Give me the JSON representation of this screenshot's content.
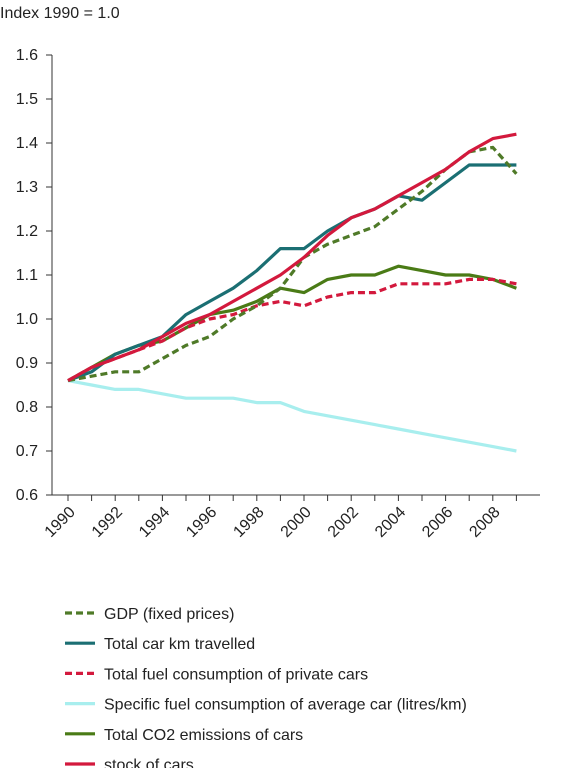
{
  "chart_data": {
    "type": "line",
    "ylabel": "Index 1990 = 1.0",
    "ylim": [
      0.6,
      1.6
    ],
    "y_ticks": [
      "0.6",
      "0.7",
      "0.8",
      "0.9",
      "1.0",
      "1.1",
      "1.2",
      "1.3",
      "1.4",
      "1.5",
      "1.6"
    ],
    "x_ticks": [
      "1990",
      "1992",
      "1994",
      "1996",
      "1998",
      "2000",
      "2002",
      "2004",
      "2006",
      "2008"
    ],
    "x": [
      1990,
      1991,
      1992,
      1993,
      1994,
      1995,
      1996,
      1997,
      1998,
      1999,
      2000,
      2001,
      2002,
      2003,
      2004,
      2005,
      2006,
      2007,
      2008,
      2009
    ],
    "grid": false,
    "legend_position": "bottom",
    "series": [
      {
        "name": "GDP (fixed prices)",
        "color": "#4f7a28",
        "dash": true,
        "values": [
          0.86,
          0.87,
          0.88,
          0.88,
          0.91,
          0.94,
          0.96,
          1.0,
          1.03,
          1.07,
          1.14,
          1.17,
          1.19,
          1.21,
          1.25,
          1.29,
          1.34,
          1.38,
          1.39,
          1.33
        ]
      },
      {
        "name": "Total car km travelled",
        "color": "#1b6f73",
        "dash": false,
        "values": [
          0.86,
          0.88,
          0.92,
          0.94,
          0.96,
          1.01,
          1.04,
          1.07,
          1.11,
          1.16,
          1.16,
          1.2,
          1.23,
          1.25,
          1.28,
          1.27,
          1.31,
          1.35,
          1.35,
          1.35
        ]
      },
      {
        "name": "Total fuel consumption of private cars",
        "color": "#d3193d",
        "dash": true,
        "values": [
          0.86,
          0.89,
          0.91,
          0.93,
          0.95,
          0.98,
          1.0,
          1.01,
          1.03,
          1.04,
          1.03,
          1.05,
          1.06,
          1.06,
          1.08,
          1.08,
          1.08,
          1.09,
          1.09,
          1.08
        ]
      },
      {
        "name": "Specific fuel consumption of average car (litres/km)",
        "color": "#a8eeee",
        "dash": false,
        "values": [
          0.86,
          0.85,
          0.84,
          0.84,
          0.83,
          0.82,
          0.82,
          0.82,
          0.81,
          0.81,
          0.79,
          0.78,
          0.77,
          0.76,
          0.75,
          0.74,
          0.73,
          0.72,
          0.71,
          0.7
        ]
      },
      {
        "name": "Total CO2 emissions of cars",
        "color": "#4a7b16",
        "dash": false,
        "values": [
          0.86,
          0.89,
          0.92,
          0.94,
          0.95,
          0.98,
          1.01,
          1.02,
          1.04,
          1.07,
          1.06,
          1.09,
          1.1,
          1.1,
          1.12,
          1.11,
          1.1,
          1.1,
          1.09,
          1.07
        ]
      },
      {
        "name": "stock of cars",
        "color": "#d3193d",
        "dash": false,
        "values": [
          0.86,
          0.89,
          0.91,
          0.93,
          0.96,
          0.99,
          1.01,
          1.04,
          1.07,
          1.1,
          1.14,
          1.19,
          1.23,
          1.25,
          1.28,
          1.31,
          1.34,
          1.38,
          1.41,
          1.42
        ]
      }
    ]
  }
}
